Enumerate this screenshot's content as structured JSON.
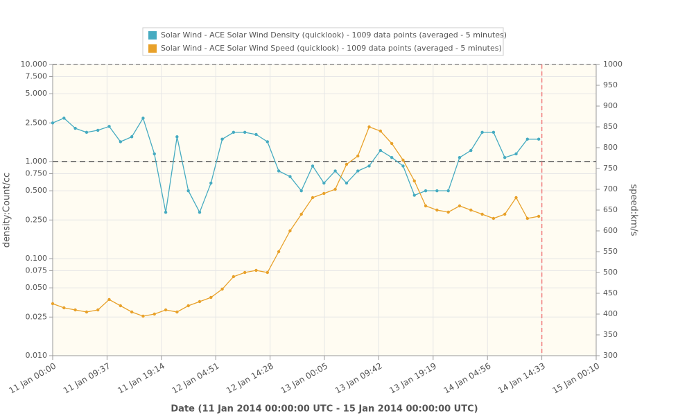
{
  "chart_data": {
    "type": "line",
    "legend_position": "top",
    "x_label": "Date (11 Jan 2014 00:00:00 UTC - 15 Jan 2014 00:00:00 UTC)",
    "y_label": "density:Count/cc",
    "y2_label": "speed:km/s",
    "y_log": true,
    "grid": true,
    "hline": 1,
    "vline": "2014-01-14T14:33",
    "xlim": [
      "2014-01-11T00:00",
      "2014-01-15T00:10"
    ],
    "xticks": [
      {
        "value": "2014-01-11T00:00",
        "label": "11 Jan 00:00"
      },
      {
        "value": "2014-01-11T09:37",
        "label": "11 Jan 09:37"
      },
      {
        "value": "2014-01-11T19:14",
        "label": "11 Jan 19:14"
      },
      {
        "value": "2014-01-12T04:51",
        "label": "12 Jan 04:51"
      },
      {
        "value": "2014-01-12T14:28",
        "label": "12 Jan 14:28"
      },
      {
        "value": "2014-01-13T00:05",
        "label": "13 Jan 00:05"
      },
      {
        "value": "2014-01-13T09:42",
        "label": "13 Jan 09:42"
      },
      {
        "value": "2014-01-13T19:19",
        "label": "13 Jan 19:19"
      },
      {
        "value": "2014-01-14T04:56",
        "label": "14 Jan 04:56"
      },
      {
        "value": "2014-01-14T14:33",
        "label": "14 Jan 14:33"
      },
      {
        "value": "2014-01-15T00:10",
        "label": "15 Jan 00:10"
      }
    ],
    "ylim": [
      0.01,
      10
    ],
    "yticks": [
      {
        "value": 0.01,
        "label": "0.010"
      },
      {
        "value": 0.025,
        "label": "0.025"
      },
      {
        "value": 0.05,
        "label": "0.050"
      },
      {
        "value": 0.075,
        "label": "0.075"
      },
      {
        "value": 0.1,
        "label": "0.100"
      },
      {
        "value": 0.25,
        "label": "0.250"
      },
      {
        "value": 0.5,
        "label": "0.500"
      },
      {
        "value": 0.75,
        "label": "0.750"
      },
      {
        "value": 1,
        "label": "1.000"
      },
      {
        "value": 2.5,
        "label": "2.500"
      },
      {
        "value": 5,
        "label": "5.000"
      },
      {
        "value": 7.5,
        "label": "7.500"
      },
      {
        "value": 10,
        "label": "10.000"
      }
    ],
    "y2lim": [
      300,
      1000
    ],
    "y2ticks": [
      300,
      350,
      400,
      450,
      500,
      550,
      600,
      650,
      700,
      750,
      800,
      850,
      900,
      950,
      1000
    ],
    "x": [
      "2014-01-11T00:00",
      "2014-01-11T02:00",
      "2014-01-11T04:00",
      "2014-01-11T06:00",
      "2014-01-11T08:00",
      "2014-01-11T10:00",
      "2014-01-11T12:00",
      "2014-01-11T14:00",
      "2014-01-11T16:00",
      "2014-01-11T18:00",
      "2014-01-11T20:00",
      "2014-01-11T22:00",
      "2014-01-12T00:00",
      "2014-01-12T02:00",
      "2014-01-12T04:00",
      "2014-01-12T06:00",
      "2014-01-12T08:00",
      "2014-01-12T10:00",
      "2014-01-12T12:00",
      "2014-01-12T14:00",
      "2014-01-12T16:00",
      "2014-01-12T18:00",
      "2014-01-12T20:00",
      "2014-01-12T22:00",
      "2014-01-13T00:00",
      "2014-01-13T02:00",
      "2014-01-13T04:00",
      "2014-01-13T06:00",
      "2014-01-13T08:00",
      "2014-01-13T10:00",
      "2014-01-13T12:00",
      "2014-01-13T14:00",
      "2014-01-13T16:00",
      "2014-01-13T18:00",
      "2014-01-13T20:00",
      "2014-01-13T22:00",
      "2014-01-14T00:00",
      "2014-01-14T02:00",
      "2014-01-14T04:00",
      "2014-01-14T06:00",
      "2014-01-14T08:00",
      "2014-01-14T10:00",
      "2014-01-14T12:00",
      "2014-01-14T14:00"
    ],
    "series": [
      {
        "name": "Solar Wind - ACE Solar Wind Density (quicklook) - 1009 data points (averaged - 5 minutes)",
        "color": "#46abc1",
        "values": [
          2.5,
          2.8,
          2.2,
          2.0,
          2.1,
          2.3,
          1.6,
          1.8,
          2.8,
          1.2,
          0.3,
          1.8,
          0.5,
          0.3,
          0.6,
          1.7,
          2.0,
          2.0,
          1.9,
          1.6,
          0.8,
          0.7,
          0.5,
          0.9,
          0.6,
          0.8,
          0.6,
          0.8,
          0.9,
          1.3,
          1.1,
          0.9,
          0.45,
          0.5,
          0.5,
          0.5,
          1.1,
          1.3,
          2.0,
          2.0,
          1.1,
          1.2,
          1.7,
          1.7
        ]
      },
      {
        "name": "Solar Wind - ACE Solar Wind Speed (quicklook) - 1009 data points (averaged - 5 minutes)",
        "color": "#e8a12a",
        "axis": "y2",
        "values": [
          425,
          415,
          410,
          405,
          410,
          435,
          420,
          405,
          395,
          400,
          410,
          405,
          420,
          430,
          440,
          460,
          490,
          500,
          505,
          500,
          550,
          600,
          640,
          680,
          690,
          700,
          760,
          780,
          850,
          840,
          810,
          770,
          720,
          660,
          650,
          645,
          660,
          650,
          640,
          630,
          640,
          680,
          630,
          635
        ]
      }
    ]
  }
}
